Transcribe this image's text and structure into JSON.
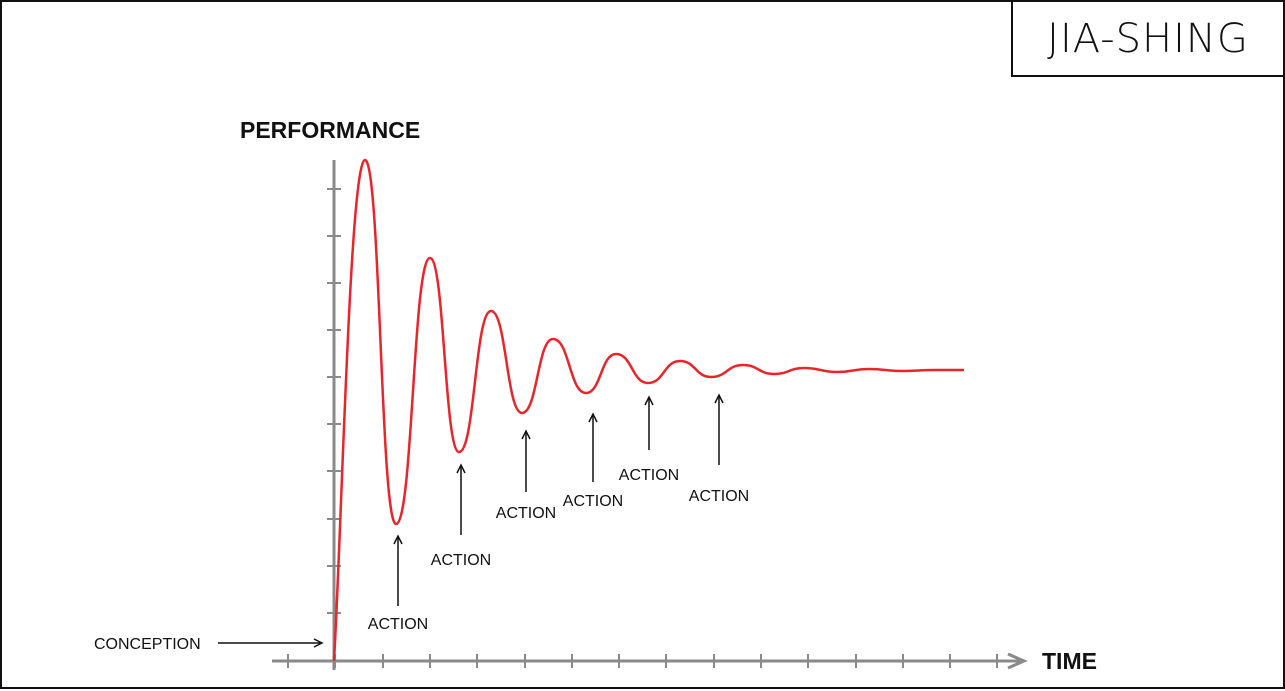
{
  "brand": {
    "text": "JIA-SHING"
  },
  "axes": {
    "y_label": "PERFORMANCE",
    "x_label": "TIME"
  },
  "colors": {
    "curve": "#e8262a",
    "axis": "#8a8a8a",
    "ink": "#111111"
  },
  "annotations": {
    "conception": "CONCEPTION",
    "actions": [
      "ACTION",
      "ACTION",
      "ACTION",
      "ACTION",
      "ACTION",
      "ACTION"
    ]
  }
}
